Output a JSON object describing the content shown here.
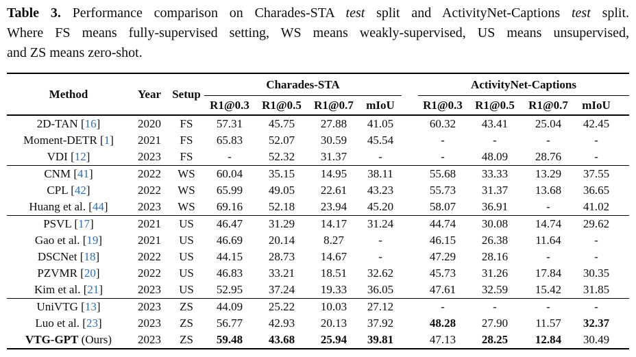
{
  "caption": {
    "label": "Table 3.",
    "line1_part1": "Performance comparison on Charades-STA",
    "line1_italic1": "test",
    "line1_part2": "split and ActivityNet-Captions",
    "line1_italic2": "test",
    "line1_part3": "split.",
    "line2": "Where FS means fully-supervised setting, WS means weakly-supervised, US means unsupervised,",
    "line3": "and ZS means zero-shot."
  },
  "table": {
    "header": {
      "method": "Method",
      "year": "Year",
      "setup": "Setup",
      "groups": [
        {
          "label": "Charades-STA",
          "cols": [
            "R1@0.3",
            "R1@0.5",
            "R1@0.7",
            "mIoU"
          ]
        },
        {
          "label": "ActivityNet-Captions",
          "cols": [
            "R1@0.3",
            "R1@0.5",
            "R1@0.7",
            "mIoU"
          ]
        }
      ]
    },
    "colors": {
      "citation_blue": "#2b6fb5",
      "text": "#0d0d0d",
      "rule": "#000000"
    },
    "rows": [
      {
        "method": "2D-TAN",
        "cite": "16",
        "year": "2020",
        "setup": "FS",
        "values": [
          "57.31",
          "45.75",
          "27.88",
          "41.05",
          "60.32",
          "43.41",
          "25.04",
          "42.45"
        ]
      },
      {
        "method": "Moment-DETR",
        "cite": "1",
        "year": "2021",
        "setup": "FS",
        "values": [
          "65.83",
          "52.07",
          "30.59",
          "45.54",
          "-",
          "-",
          "-",
          "-"
        ]
      },
      {
        "method": "VDI",
        "cite": "12",
        "year": "2023",
        "setup": "FS",
        "values": [
          "-",
          "52.32",
          "31.37",
          "-",
          "-",
          "48.09",
          "28.76",
          "-"
        ]
      },
      {
        "method": "CNM",
        "cite": "41",
        "year": "2022",
        "setup": "WS",
        "rule_above": true,
        "values": [
          "60.04",
          "35.15",
          "14.95",
          "38.11",
          "55.68",
          "33.33",
          "13.29",
          "37.55"
        ]
      },
      {
        "method": "CPL",
        "cite": "42",
        "year": "2022",
        "setup": "WS",
        "values": [
          "65.99",
          "49.05",
          "22.61",
          "43.23",
          "55.73",
          "31.37",
          "13.68",
          "36.65"
        ]
      },
      {
        "method": "Huang et al.",
        "cite": "44",
        "year": "2023",
        "setup": "WS",
        "values": [
          "69.16",
          "52.18",
          "23.94",
          "45.20",
          "58.07",
          "36.91",
          "-",
          "41.02"
        ]
      },
      {
        "method": "PSVL",
        "cite": "17",
        "year": "2021",
        "setup": "US",
        "rule_above": true,
        "values": [
          "46.47",
          "31.29",
          "14.17",
          "31.24",
          "44.74",
          "30.08",
          "14.74",
          "29.62"
        ]
      },
      {
        "method": "Gao et al.",
        "cite": "19",
        "year": "2021",
        "setup": "US",
        "values": [
          "46.69",
          "20.14",
          "8.27",
          "-",
          "46.15",
          "26.38",
          "11.64",
          "-"
        ]
      },
      {
        "method": "DSCNet",
        "cite": "18",
        "year": "2022",
        "setup": "US",
        "values": [
          "44.15",
          "28.73",
          "14.67",
          "-",
          "47.29",
          "28.16",
          "-",
          "-"
        ]
      },
      {
        "method": "PZVMR",
        "cite": "20",
        "year": "2022",
        "setup": "US",
        "values": [
          "46.83",
          "33.21",
          "18.51",
          "32.62",
          "45.73",
          "31.26",
          "17.84",
          "30.35"
        ]
      },
      {
        "method": "Kim et al.",
        "cite": "21",
        "year": "2023",
        "setup": "US",
        "values": [
          "52.95",
          "37.24",
          "19.33",
          "36.05",
          "47.61",
          "32.59",
          "15.42",
          "31.85"
        ]
      },
      {
        "method": "UniVTG",
        "cite": "13",
        "year": "2023",
        "setup": "ZS",
        "rule_above": true,
        "values": [
          "44.09",
          "25.22",
          "10.03",
          "27.12",
          "-",
          "-",
          "-",
          "-"
        ]
      },
      {
        "method": "Luo et al.",
        "cite": "23",
        "year": "2023",
        "setup": "ZS",
        "values": [
          "56.77",
          "42.93",
          "20.13",
          "37.92",
          "48.28",
          "27.90",
          "11.57",
          "32.37"
        ],
        "bold": [
          4,
          7
        ]
      },
      {
        "method": "VTG-GPT",
        "suffix": "(Ours)",
        "method_bold": true,
        "year": "2023",
        "setup": "ZS",
        "values": [
          "59.48",
          "43.68",
          "25.94",
          "39.81",
          "47.13",
          "28.25",
          "12.84",
          "30.49"
        ],
        "bold": [
          0,
          1,
          2,
          3,
          5,
          6
        ]
      }
    ]
  }
}
